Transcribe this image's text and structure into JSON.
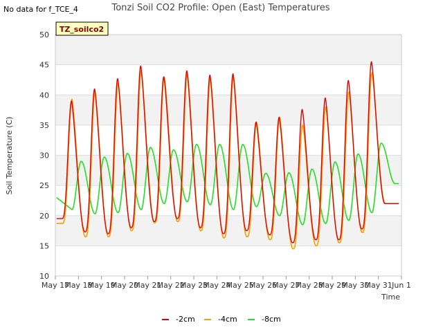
{
  "header": {
    "no_data_note": "No data for f_TCE_4"
  },
  "badge": {
    "label": "TZ_soilco2"
  },
  "chart_data": {
    "type": "line",
    "title": "Tonzi Soil CO2 Profile: Open (East) Temperatures",
    "xlabel": "Time",
    "ylabel": "Soil Temperature (C)",
    "ylim": [
      10,
      50
    ],
    "xlim": [
      17,
      32
    ],
    "grid": "horizontal bands",
    "legend_position": "bottom-center",
    "y_ticks": [
      10,
      15,
      20,
      25,
      30,
      35,
      40,
      45,
      50
    ],
    "x_ticks": [
      {
        "x": 17,
        "label": "May 17"
      },
      {
        "x": 18,
        "label": "May 18"
      },
      {
        "x": 19,
        "label": "May 19"
      },
      {
        "x": 20,
        "label": "May 20"
      },
      {
        "x": 21,
        "label": "May 21"
      },
      {
        "x": 22,
        "label": "May 22"
      },
      {
        "x": 23,
        "label": "May 23"
      },
      {
        "x": 24,
        "label": "May 24"
      },
      {
        "x": 25,
        "label": "May 25"
      },
      {
        "x": 26,
        "label": "May 26"
      },
      {
        "x": 27,
        "label": "May 27"
      },
      {
        "x": 28,
        "label": "May 28"
      },
      {
        "x": 29,
        "label": "May 29"
      },
      {
        "x": 30,
        "label": "May 30"
      },
      {
        "x": 31,
        "label": "May 31"
      },
      {
        "x": 32,
        "label": "Jun 1"
      }
    ],
    "daily_extremes": [
      {
        "day": 17,
        "min2": 19.5,
        "max2": 39.0,
        "min4": 18.7,
        "max4": 39.3,
        "min8": 21.0,
        "max8": 29.0
      },
      {
        "day": 18,
        "min2": 17.3,
        "max2": 41.0,
        "min4": 16.5,
        "max4": 40.5,
        "min8": 20.3,
        "max8": 29.7
      },
      {
        "day": 19,
        "min2": 17.0,
        "max2": 42.7,
        "min4": 16.5,
        "max4": 42.0,
        "min8": 20.5,
        "max8": 30.3
      },
      {
        "day": 20,
        "min2": 18.0,
        "max2": 44.8,
        "min4": 17.5,
        "max4": 44.0,
        "min8": 21.0,
        "max8": 31.3
      },
      {
        "day": 21,
        "min2": 19.0,
        "max2": 43.0,
        "min4": 18.8,
        "max4": 43.0,
        "min8": 22.0,
        "max8": 30.9
      },
      {
        "day": 22,
        "min2": 19.5,
        "max2": 44.0,
        "min4": 19.0,
        "max4": 43.5,
        "min8": 22.3,
        "max8": 31.8
      },
      {
        "day": 23,
        "min2": 18.0,
        "max2": 43.3,
        "min4": 17.5,
        "max4": 42.8,
        "min8": 21.8,
        "max8": 31.8
      },
      {
        "day": 24,
        "min2": 17.0,
        "max2": 43.5,
        "min4": 16.3,
        "max4": 43.0,
        "min8": 21.0,
        "max8": 31.8
      },
      {
        "day": 25,
        "min2": 17.5,
        "max2": 35.5,
        "min4": 16.5,
        "max4": 35.5,
        "min8": 21.5,
        "max8": 27.0
      },
      {
        "day": 26,
        "min2": 16.8,
        "max2": 36.3,
        "min4": 16.0,
        "max4": 36.3,
        "min8": 20.0,
        "max8": 27.1
      },
      {
        "day": 27,
        "min2": 15.5,
        "max2": 37.6,
        "min4": 14.5,
        "max4": 35.0,
        "min8": 18.5,
        "max8": 27.7
      },
      {
        "day": 28,
        "min2": 16.0,
        "max2": 39.5,
        "min4": 15.0,
        "max4": 38.0,
        "min8": 18.7,
        "max8": 28.9
      },
      {
        "day": 29,
        "min2": 16.0,
        "max2": 42.4,
        "min4": 15.5,
        "max4": 40.5,
        "min8": 19.2,
        "max8": 30.2
      },
      {
        "day": 30,
        "min2": 17.8,
        "max2": 45.5,
        "min4": 17.2,
        "max4": 43.7,
        "min8": 20.5,
        "max8": 32.0
      },
      {
        "day": 31,
        "min2": 22.0,
        "min4": 22.0,
        "min8": 25.3
      }
    ],
    "series": [
      {
        "name": "-2cm",
        "color": "#dd0000"
      },
      {
        "name": "-4cm",
        "color": "#f5a000"
      },
      {
        "name": "-8cm",
        "color": "#22dd22"
      }
    ]
  }
}
